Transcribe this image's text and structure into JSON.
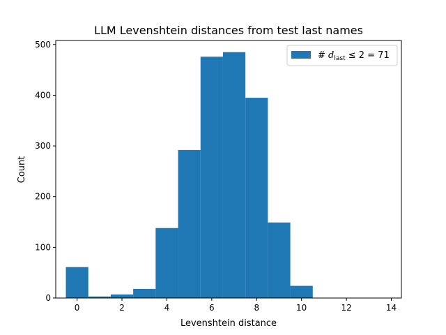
{
  "chart_data": {
    "type": "bar",
    "title": "LLM Levenshtein distances from test last names",
    "xlabel": "Levenshtein distance",
    "ylabel": "Count",
    "xlim": [
      -0.95,
      14.45
    ],
    "ylim": [
      0,
      508
    ],
    "xticks": [
      0,
      2,
      4,
      6,
      8,
      10,
      12,
      14
    ],
    "yticks": [
      0,
      100,
      200,
      300,
      400,
      500
    ],
    "bin_width": 1,
    "bins": [
      {
        "x": 0,
        "count": 61
      },
      {
        "x": 1,
        "count": 3
      },
      {
        "x": 2,
        "count": 7
      },
      {
        "x": 3,
        "count": 18
      },
      {
        "x": 4,
        "count": 138
      },
      {
        "x": 5,
        "count": 292
      },
      {
        "x": 6,
        "count": 476
      },
      {
        "x": 7,
        "count": 485
      },
      {
        "x": 8,
        "count": 395
      },
      {
        "x": 9,
        "count": 149
      },
      {
        "x": 10,
        "count": 24
      },
      {
        "x": 11,
        "count": 0
      },
      {
        "x": 12,
        "count": 0
      },
      {
        "x": 13,
        "count": 0
      },
      {
        "x": 14,
        "count": 0
      }
    ],
    "bar_color": "#1f77b4",
    "grid": false,
    "legend": {
      "placement": "top-right",
      "prefix": "# ",
      "symbol": "d",
      "subscript": "last",
      "suffix": " ≤ 2 = 71"
    }
  }
}
